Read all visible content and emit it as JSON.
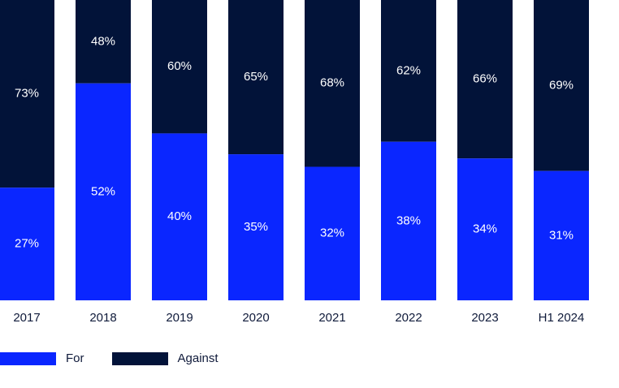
{
  "colors": {
    "for": "#0a26ff",
    "against": "#021339",
    "text_light": "#ffffff",
    "text_dark": "#0f1a3a"
  },
  "legend": {
    "for_label": "For",
    "against_label": "Against"
  },
  "chart_data": {
    "type": "bar",
    "stacked": true,
    "percent": true,
    "categories": [
      "2017",
      "2018",
      "2019",
      "2020",
      "2021",
      "2022",
      "2023",
      "H1 2024"
    ],
    "series": [
      {
        "name": "For",
        "values": [
          27,
          52,
          40,
          35,
          32,
          38,
          34,
          31
        ],
        "labels": [
          "27%",
          "52%",
          "40%",
          "35%",
          "32%",
          "38%",
          "34%",
          "31%"
        ]
      },
      {
        "name": "Against",
        "values": [
          73,
          48,
          60,
          65,
          68,
          62,
          66,
          69
        ],
        "labels": [
          "73%",
          "48%",
          "60%",
          "65%",
          "68%",
          "62%",
          "66%",
          "69%"
        ]
      }
    ],
    "ylim": [
      0,
      100
    ],
    "legend_position": "bottom-left",
    "grid": false
  }
}
